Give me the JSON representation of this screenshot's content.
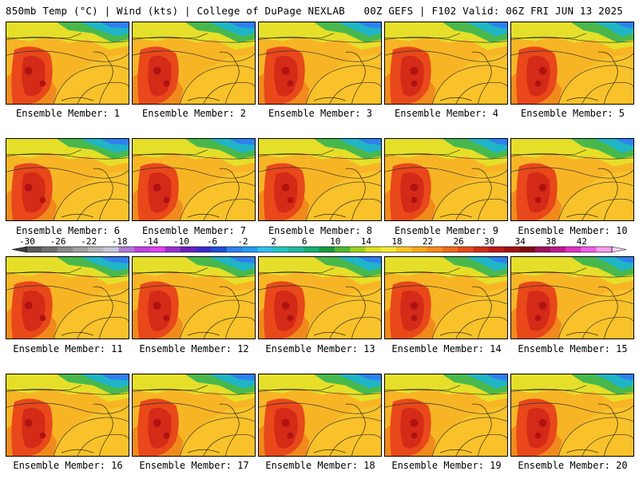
{
  "header": {
    "left": "850mb Temp (°C) | Wind (kts) | College of DuPage NEXLAB",
    "right": "00Z GEFS | F102 Valid: 06Z FRI JUN 13 2025"
  },
  "member_label_prefix": "Ensemble Member: ",
  "members": [
    "1",
    "2",
    "3",
    "4",
    "5",
    "6",
    "7",
    "8",
    "9",
    "10",
    "11",
    "12",
    "13",
    "14",
    "15",
    "16",
    "17",
    "18",
    "19",
    "20"
  ],
  "colorbar": {
    "tick_labels": [
      "-30",
      "-26",
      "-22",
      "-18",
      "-14",
      "-10",
      "-6",
      "-2",
      "2",
      "6",
      "10",
      "14",
      "18",
      "22",
      "26",
      "30",
      "34",
      "38",
      "42"
    ],
    "colors": [
      "#5a5a5a",
      "#707070",
      "#8a8a8a",
      "#a0a0a0",
      "#b8b8b8",
      "#c7c7dd",
      "#b07ad8",
      "#c040e0",
      "#e040f0",
      "#9a30d0",
      "#6a1fc0",
      "#3a2ad0",
      "#1d4ed8",
      "#2f80f0",
      "#1ea0f0",
      "#30c0f0",
      "#22c7c0",
      "#20b8a0",
      "#14b070",
      "#1a9a3a",
      "#50b830",
      "#9ad020",
      "#e0e020",
      "#f8e838",
      "#fcc820",
      "#f9a818",
      "#f78a18",
      "#f26a18",
      "#e84a18",
      "#d42a18",
      "#c01818",
      "#a01010",
      "#800a0a",
      "#a0105a",
      "#c01890",
      "#e030c0",
      "#f060e8",
      "#f8a0f0"
    ]
  }
}
